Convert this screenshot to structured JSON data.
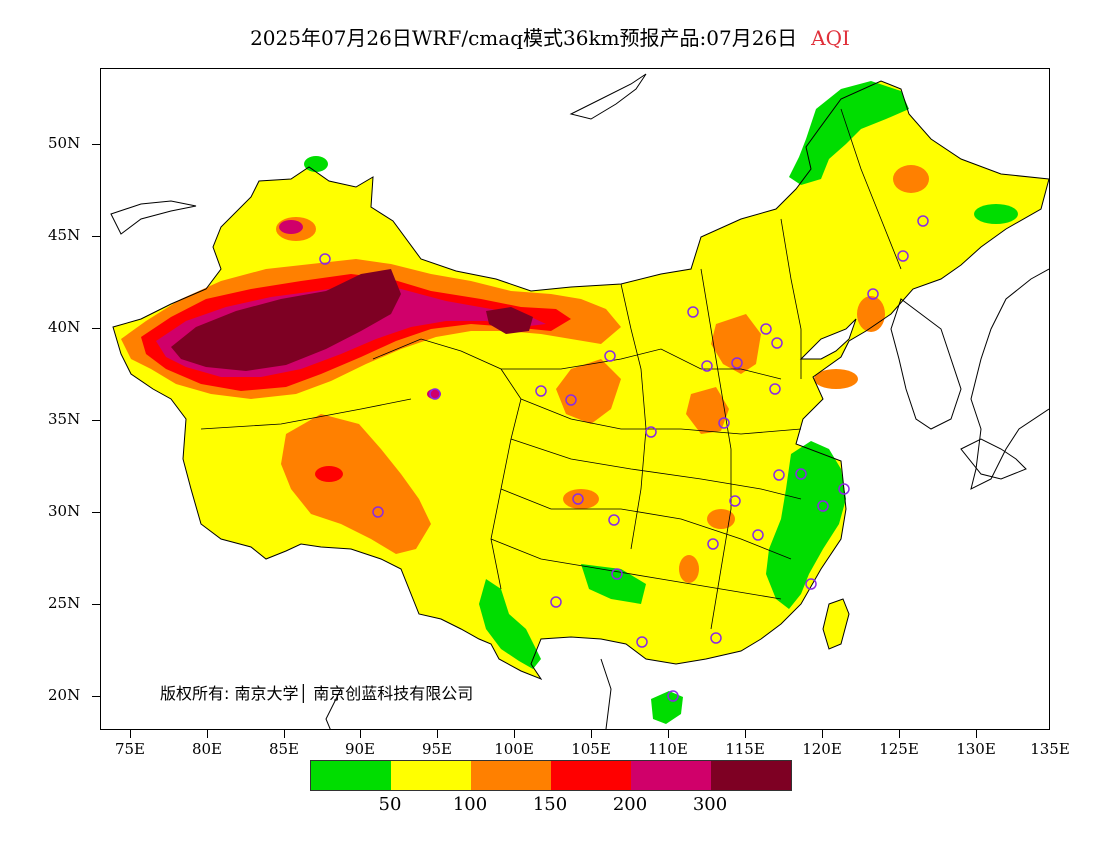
{
  "title": {
    "text": "2025年07月26日WRF/cmaq模式36km预报产品:07月26日",
    "variable": "AQI",
    "variable_color": "#e0303a"
  },
  "axes": {
    "y_labels": [
      "50N",
      "45N",
      "40N",
      "35N",
      "30N",
      "25N",
      "20N"
    ],
    "x_labels": [
      "75E",
      "80E",
      "85E",
      "90E",
      "95E",
      "100E",
      "105E",
      "110E",
      "115E",
      "120E",
      "125E",
      "130E",
      "135E"
    ]
  },
  "copyright": "版权所有: 南京大学│ 南京创蓝科技有限公司",
  "legend": {
    "colors": [
      "#00dd00",
      "#ffff00",
      "#ff8000",
      "#ff0000",
      "#d0006a",
      "#7e0023"
    ],
    "labels": [
      "50",
      "100",
      "150",
      "200",
      "300"
    ]
  },
  "map_colors": {
    "green": "#00dd00",
    "yellow": "#ffff00",
    "orange": "#ff8000",
    "red": "#ff0000",
    "magenta": "#d0006a",
    "maroon": "#7e0023",
    "station_marker": "#8a2be2"
  }
}
